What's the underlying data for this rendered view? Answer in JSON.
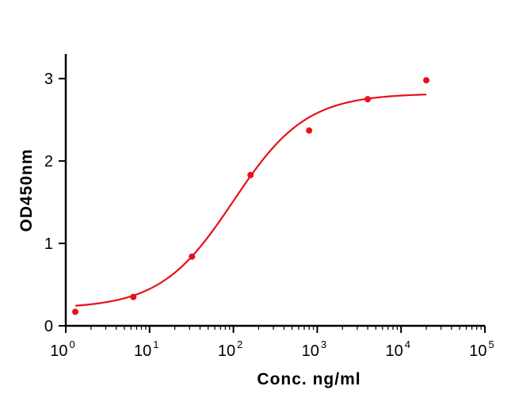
{
  "chart_data": {
    "type": "scatter",
    "xlabel": "Conc. ng/ml",
    "ylabel": "OD450nm",
    "x_scale": "log10",
    "xlim": [
      1,
      100000
    ],
    "ylim": [
      0,
      3.3
    ],
    "x_ticks": [
      {
        "base": "10",
        "exp": "0",
        "value": 1
      },
      {
        "base": "10",
        "exp": "1",
        "value": 10
      },
      {
        "base": "10",
        "exp": "2",
        "value": 100
      },
      {
        "base": "10",
        "exp": "3",
        "value": 1000
      },
      {
        "base": "10",
        "exp": "4",
        "value": 10000
      },
      {
        "base": "10",
        "exp": "5",
        "value": 100000
      }
    ],
    "y_ticks": [
      {
        "label": "0",
        "value": 0
      },
      {
        "label": "1",
        "value": 1
      },
      {
        "label": "2",
        "value": 2
      },
      {
        "label": "3",
        "value": 3
      }
    ],
    "series": [
      {
        "x": [
          1.3,
          6.4,
          32,
          160,
          800,
          4000,
          20000
        ],
        "y": [
          0.17,
          0.35,
          0.84,
          1.83,
          2.37,
          2.75,
          2.98
        ],
        "fit": "four-parameter logistic",
        "fit_params": {
          "bottom": 0.21,
          "top": 2.82,
          "ec50": 100,
          "hill": 1.0
        },
        "fit_range": [
          1.3,
          20000
        ]
      }
    ],
    "grid": false,
    "legend": "none",
    "color": "#e8101a"
  }
}
